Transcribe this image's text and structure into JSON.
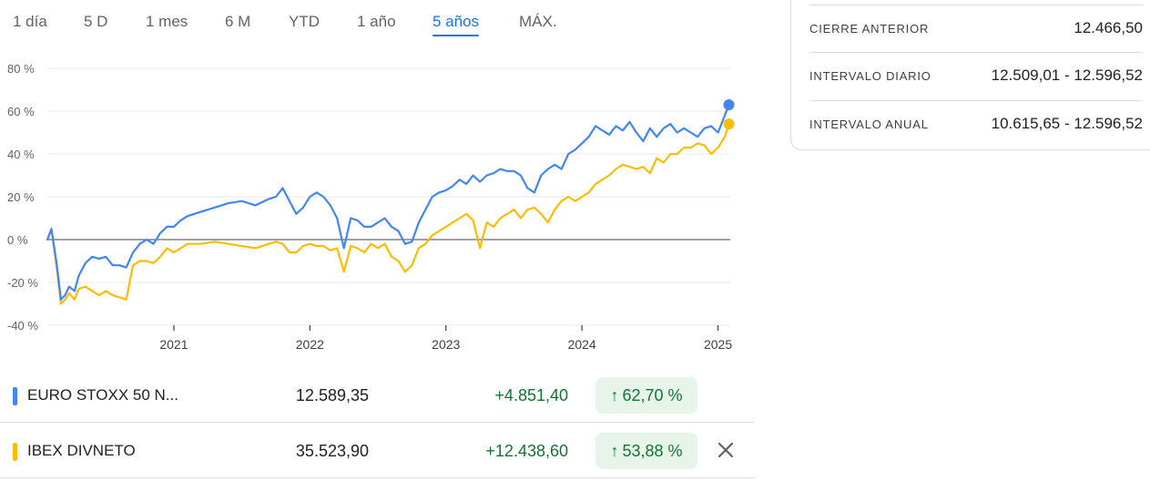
{
  "tabs": [
    {
      "label": "1 día",
      "active": false
    },
    {
      "label": "5 D",
      "active": false
    },
    {
      "label": "1 mes",
      "active": false
    },
    {
      "label": "6 M",
      "active": false
    },
    {
      "label": "YTD",
      "active": false
    },
    {
      "label": "1 año",
      "active": false
    },
    {
      "label": "5 años",
      "active": true
    },
    {
      "label": "MÁX.",
      "active": false
    }
  ],
  "stats": [
    {
      "label": "CIERRE ANTERIOR",
      "value": "12.466,50"
    },
    {
      "label": "INTERVALO DIARIO",
      "value": "12.509,01 - 12.596,52"
    },
    {
      "label": "INTERVALO ANUAL",
      "value": "10.615,65 - 12.596,52"
    }
  ],
  "comparisons": [
    {
      "name": "EURO STOXX 50 N...",
      "price": "12.589,35",
      "change": "+4.851,40",
      "percent": "62,70 %",
      "color": "#4285f4",
      "arrow_icon": "arrow-up-icon"
    },
    {
      "name": "IBEX DIVNETO",
      "price": "35.523,90",
      "change": "+12.438,60",
      "percent": "53,88 %",
      "color": "#fbbc04",
      "arrow_icon": "arrow-up-icon",
      "close_icon": "close-icon"
    }
  ],
  "chart_data": {
    "type": "line",
    "title": "",
    "xlabel": "",
    "ylabel": "",
    "ylim": [
      -40,
      80
    ],
    "yticks": [
      "80 %",
      "60 %",
      "40 %",
      "20 %",
      "0 %",
      "-20 %",
      "-40 %"
    ],
    "ytick_values": [
      80,
      60,
      40,
      20,
      0,
      -20,
      -40
    ],
    "xticks": [
      "2021",
      "2022",
      "2023",
      "2024",
      "2025"
    ],
    "xtick_values": [
      2021.0,
      2022.0,
      2023.0,
      2024.0,
      2025.0
    ],
    "xlim": [
      2020.07,
      2025.09
    ],
    "grid": true,
    "series": [
      {
        "name": "EURO STOXX 50 N...",
        "color": "#4285f4",
        "x": [
          2020.07,
          2020.1,
          2020.14,
          2020.17,
          2020.2,
          2020.23,
          2020.27,
          2020.3,
          2020.35,
          2020.4,
          2020.45,
          2020.5,
          2020.55,
          2020.6,
          2020.65,
          2020.7,
          2020.75,
          2020.8,
          2020.85,
          2020.9,
          2020.95,
          2021.0,
          2021.05,
          2021.1,
          2021.15,
          2021.2,
          2021.3,
          2021.4,
          2021.5,
          2021.6,
          2021.7,
          2021.75,
          2021.8,
          2021.85,
          2021.9,
          2021.95,
          2022.0,
          2022.05,
          2022.1,
          2022.15,
          2022.2,
          2022.25,
          2022.3,
          2022.35,
          2022.4,
          2022.45,
          2022.5,
          2022.55,
          2022.6,
          2022.65,
          2022.7,
          2022.75,
          2022.8,
          2022.85,
          2022.9,
          2022.95,
          2023.0,
          2023.05,
          2023.1,
          2023.15,
          2023.2,
          2023.25,
          2023.3,
          2023.35,
          2023.4,
          2023.45,
          2023.5,
          2023.55,
          2023.6,
          2023.65,
          2023.7,
          2023.75,
          2023.8,
          2023.85,
          2023.9,
          2023.95,
          2024.0,
          2024.05,
          2024.1,
          2024.15,
          2024.2,
          2024.25,
          2024.3,
          2024.35,
          2024.4,
          2024.45,
          2024.5,
          2024.55,
          2024.6,
          2024.65,
          2024.7,
          2024.75,
          2024.8,
          2024.85,
          2024.9,
          2024.95,
          2025.0,
          2025.05,
          2025.08
        ],
        "values": [
          0,
          5,
          -12,
          -28,
          -26,
          -22,
          -24,
          -17,
          -11,
          -8,
          -9,
          -8,
          -12,
          -12,
          -13,
          -6,
          -2,
          0,
          -2,
          3,
          6,
          6,
          9,
          11,
          12,
          13,
          15,
          17,
          18,
          16,
          19,
          20,
          24,
          18,
          12,
          15,
          20,
          22,
          20,
          16,
          10,
          -4,
          10,
          9,
          6,
          6,
          8,
          10,
          6,
          4,
          -2,
          -1,
          8,
          14,
          20,
          22,
          23,
          25,
          28,
          26,
          30,
          27,
          30,
          31,
          33,
          32,
          32,
          30,
          24,
          22,
          30,
          33,
          35,
          33,
          40,
          42,
          45,
          48,
          53,
          51,
          49,
          53,
          51,
          55,
          50,
          46,
          52,
          48,
          52,
          54,
          50,
          52,
          50,
          48,
          52,
          53,
          50,
          58,
          63
        ]
      },
      {
        "name": "IBEX DIVNETO",
        "color": "#fbbc04",
        "x": [
          2020.07,
          2020.1,
          2020.14,
          2020.17,
          2020.2,
          2020.23,
          2020.27,
          2020.3,
          2020.35,
          2020.4,
          2020.45,
          2020.5,
          2020.55,
          2020.6,
          2020.65,
          2020.7,
          2020.75,
          2020.8,
          2020.85,
          2020.9,
          2020.95,
          2021.0,
          2021.05,
          2021.1,
          2021.15,
          2021.2,
          2021.3,
          2021.4,
          2021.5,
          2021.6,
          2021.7,
          2021.75,
          2021.8,
          2021.85,
          2021.9,
          2021.95,
          2022.0,
          2022.05,
          2022.1,
          2022.15,
          2022.2,
          2022.25,
          2022.3,
          2022.35,
          2022.4,
          2022.45,
          2022.5,
          2022.55,
          2022.6,
          2022.65,
          2022.7,
          2022.75,
          2022.8,
          2022.85,
          2022.9,
          2022.95,
          2023.0,
          2023.05,
          2023.1,
          2023.15,
          2023.2,
          2023.25,
          2023.3,
          2023.35,
          2023.4,
          2023.45,
          2023.5,
          2023.55,
          2023.6,
          2023.65,
          2023.7,
          2023.75,
          2023.8,
          2023.85,
          2023.9,
          2023.95,
          2024.0,
          2024.05,
          2024.1,
          2024.15,
          2024.2,
          2024.25,
          2024.3,
          2024.35,
          2024.4,
          2024.45,
          2024.5,
          2024.55,
          2024.6,
          2024.65,
          2024.7,
          2024.75,
          2024.8,
          2024.85,
          2024.9,
          2024.95,
          2025.0,
          2025.05,
          2025.08
        ],
        "values": [
          0,
          5,
          -14,
          -30,
          -28,
          -25,
          -28,
          -23,
          -22,
          -24,
          -26,
          -24,
          -26,
          -27,
          -28,
          -12,
          -10,
          -10,
          -11,
          -8,
          -4,
          -6,
          -4,
          -2,
          -2,
          -2,
          -1,
          -2,
          -3,
          -4,
          -2,
          -1,
          -2,
          -6,
          -6,
          -3,
          -2,
          -3,
          -3,
          -5,
          -4,
          -15,
          -3,
          -4,
          -6,
          -2,
          -4,
          -2,
          -8,
          -10,
          -15,
          -12,
          -4,
          -2,
          2,
          4,
          6,
          8,
          10,
          12,
          9,
          -4,
          8,
          6,
          10,
          12,
          14,
          10,
          14,
          15,
          12,
          8,
          14,
          18,
          20,
          18,
          20,
          22,
          26,
          28,
          30,
          33,
          35,
          34,
          33,
          34,
          31,
          38,
          36,
          40,
          40,
          43,
          43,
          45,
          44,
          40,
          43,
          48,
          54
        ]
      }
    ]
  }
}
